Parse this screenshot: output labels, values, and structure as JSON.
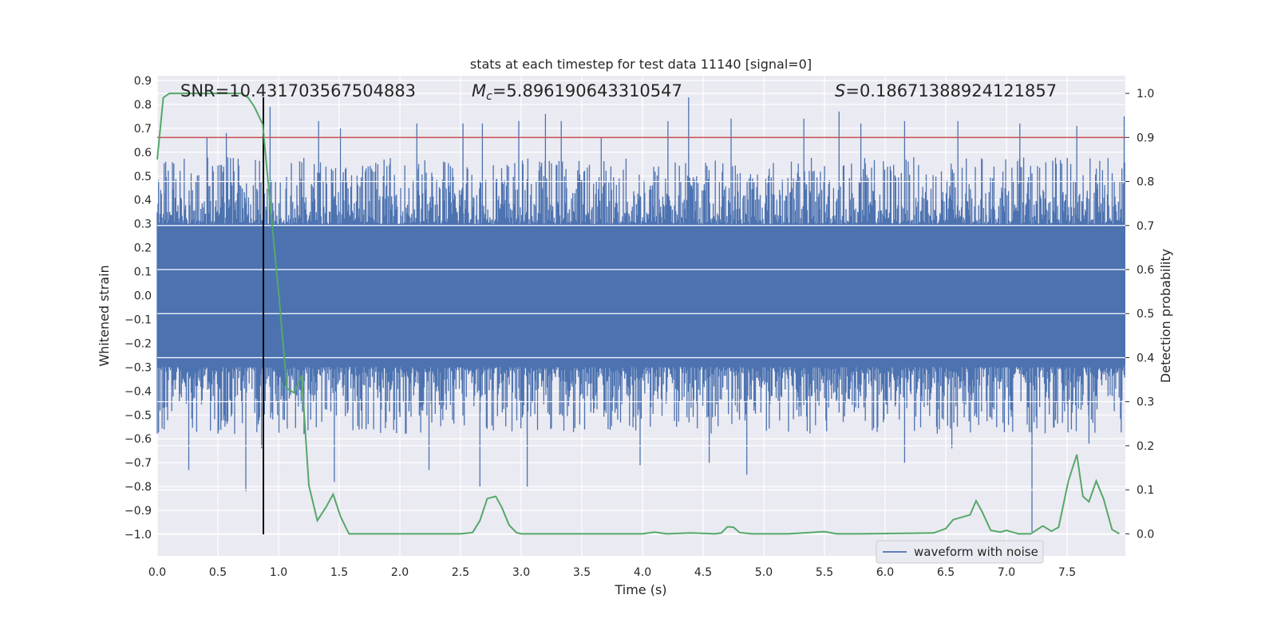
{
  "chart_data": {
    "type": "line",
    "title": "stats at each timestep for test data 11140 [signal=0]",
    "xlabel": "Time (s)",
    "ylabel_left": "Whitened strain",
    "ylabel_right": "Detection probability",
    "xlim": [
      0,
      7.98
    ],
    "ylim_left": [
      -1.09,
      0.92
    ],
    "ylim_right": [
      -0.05,
      1.04
    ],
    "grid": true,
    "x_ticks": [
      "0.0",
      "0.5",
      "1.0",
      "1.5",
      "2.0",
      "2.5",
      "3.0",
      "3.5",
      "4.0",
      "4.5",
      "5.0",
      "5.5",
      "6.0",
      "6.5",
      "7.0",
      "7.5"
    ],
    "y_ticks_left": [
      "0.9",
      "0.8",
      "0.7",
      "0.6",
      "0.5",
      "0.4",
      "0.3",
      "0.2",
      "0.1",
      "0.0",
      "−0.1",
      "−0.2",
      "−0.3",
      "−0.4",
      "−0.5",
      "−0.6",
      "−0.7",
      "−0.8",
      "−0.9",
      "−1.0"
    ],
    "y_ticks_right": [
      "1.0",
      "0.9",
      "0.8",
      "0.7",
      "0.6",
      "0.5",
      "0.4",
      "0.3",
      "0.2",
      "0.1",
      "0.0"
    ],
    "annotations": {
      "snr": "SNR=10.431703567504883",
      "mc_symbol": "M",
      "mc_sub": "c",
      "mc_value": "=5.896190643310547",
      "s_symbol": "S",
      "s_value": "=0.18671388924121857"
    },
    "threshold": {
      "value": 0.9,
      "axis": "right",
      "color": "#c44e52"
    },
    "marker_line": {
      "x": 0.875,
      "y_from": -1.0,
      "y_to": 0.83,
      "color": "#000000"
    },
    "legend": {
      "label": "waveform with noise",
      "position": "lower-right"
    },
    "series": [
      {
        "name": "waveform with noise",
        "axis": "left",
        "color": "#4c72b0",
        "style": "noise",
        "core_band": [
          -0.29,
          0.29
        ],
        "peaks": [
          {
            "x": 0.07,
            "y": 0.56
          },
          {
            "x": 0.41,
            "y": 0.66
          },
          {
            "x": 0.57,
            "y": 0.68
          },
          {
            "x": 0.93,
            "y": 0.79
          },
          {
            "x": 1.33,
            "y": 0.73
          },
          {
            "x": 1.51,
            "y": 0.7
          },
          {
            "x": 2.14,
            "y": 0.72
          },
          {
            "x": 2.52,
            "y": 0.72
          },
          {
            "x": 2.68,
            "y": 0.72
          },
          {
            "x": 2.98,
            "y": 0.73
          },
          {
            "x": 3.2,
            "y": 0.76
          },
          {
            "x": 3.33,
            "y": 0.73
          },
          {
            "x": 3.66,
            "y": 0.66
          },
          {
            "x": 4.21,
            "y": 0.73
          },
          {
            "x": 4.38,
            "y": 0.83
          },
          {
            "x": 4.73,
            "y": 0.74
          },
          {
            "x": 5.33,
            "y": 0.74
          },
          {
            "x": 5.62,
            "y": 0.77
          },
          {
            "x": 5.8,
            "y": 0.72
          },
          {
            "x": 6.16,
            "y": 0.73
          },
          {
            "x": 6.6,
            "y": 0.73
          },
          {
            "x": 7.11,
            "y": 0.72
          },
          {
            "x": 7.58,
            "y": 0.71
          },
          {
            "x": 7.97,
            "y": 0.75
          }
        ],
        "troughs": [
          {
            "x": 0.26,
            "y": -0.73
          },
          {
            "x": 0.73,
            "y": -0.82
          },
          {
            "x": 0.86,
            "y": -0.64
          },
          {
            "x": 1.21,
            "y": -0.58
          },
          {
            "x": 1.46,
            "y": -0.78
          },
          {
            "x": 2.24,
            "y": -0.73
          },
          {
            "x": 2.66,
            "y": -0.8
          },
          {
            "x": 3.05,
            "y": -0.8
          },
          {
            "x": 3.98,
            "y": -0.71
          },
          {
            "x": 4.55,
            "y": -0.7
          },
          {
            "x": 4.86,
            "y": -0.75
          },
          {
            "x": 6.16,
            "y": -0.7
          },
          {
            "x": 6.55,
            "y": -0.64
          },
          {
            "x": 7.21,
            "y": -0.99
          },
          {
            "x": 7.68,
            "y": -0.62
          }
        ]
      },
      {
        "name": "",
        "axis": "right",
        "color": "#55a868",
        "x": [
          0.0,
          0.05,
          0.1,
          0.2,
          0.3,
          0.4,
          0.5,
          0.6,
          0.7,
          0.75,
          0.8,
          0.87,
          0.93,
          1.0,
          1.07,
          1.13,
          1.19,
          1.25,
          1.32,
          1.39,
          1.45,
          1.51,
          1.58,
          1.7,
          2.0,
          2.3,
          2.5,
          2.6,
          2.66,
          2.72,
          2.79,
          2.84,
          2.9,
          2.96,
          3.0,
          3.1,
          3.5,
          4.0,
          4.1,
          4.2,
          4.4,
          4.6,
          4.65,
          4.7,
          4.75,
          4.8,
          4.9,
          5.2,
          5.5,
          5.6,
          5.8,
          6.4,
          6.5,
          6.56,
          6.7,
          6.75,
          6.8,
          6.87,
          6.95,
          7.0,
          7.1,
          7.2,
          7.3,
          7.37,
          7.43,
          7.51,
          7.58,
          7.63,
          7.68,
          7.74,
          7.8,
          7.87,
          7.93
        ],
        "values": [
          0.85,
          0.99,
          1.0,
          1.0,
          1.0,
          1.0,
          1.0,
          1.0,
          1.0,
          0.99,
          0.97,
          0.93,
          0.75,
          0.55,
          0.33,
          0.32,
          0.36,
          0.11,
          0.03,
          0.06,
          0.09,
          0.04,
          0.0,
          0.0,
          0.0,
          0.0,
          0.0,
          0.003,
          0.03,
          0.08,
          0.085,
          0.06,
          0.02,
          0.003,
          0.0,
          0.0,
          0.0,
          0.0,
          0.004,
          0.0,
          0.002,
          0.0,
          0.002,
          0.016,
          0.015,
          0.003,
          0.0,
          0.0,
          0.005,
          0.0,
          0.0,
          0.002,
          0.012,
          0.032,
          0.043,
          0.075,
          0.05,
          0.008,
          0.004,
          0.008,
          0.0,
          0.0,
          0.018,
          0.006,
          0.015,
          0.12,
          0.18,
          0.085,
          0.073,
          0.12,
          0.08,
          0.01,
          0.0
        ]
      }
    ]
  }
}
